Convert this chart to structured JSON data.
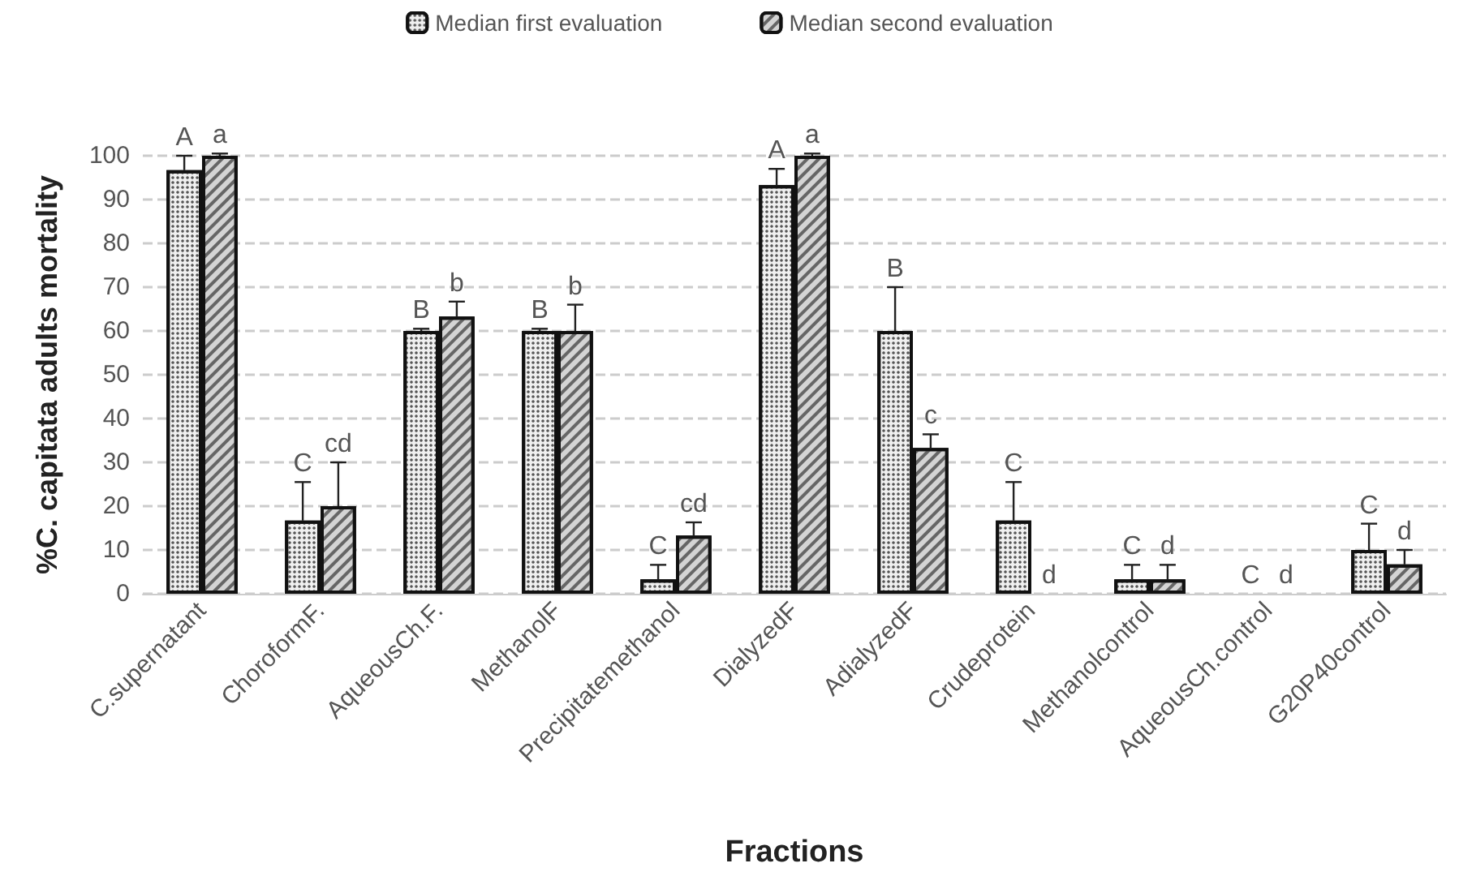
{
  "chart_data": {
    "type": "bar",
    "xlabel": "Fractions",
    "ylabel": "%C. capitata adults mortality",
    "categories": [
      "C.supernatant",
      "ChoroformF.",
      "AqueousCh.F.",
      "MethanolF",
      "Precipitatemethanol",
      "DialyzedF",
      "AdialyzedF",
      "Crudeprotein",
      "Methanolcontrol",
      "AqueousCh.control",
      "G20P40control"
    ],
    "series": [
      {
        "name": "Median first evaluation",
        "color": "#f0f0f0",
        "values": [
          96.7,
          16.7,
          60,
          60,
          3.3,
          93.3,
          60,
          16.7,
          3.3,
          0,
          10
        ],
        "errors": [
          [
            96.7,
            100
          ],
          [
            16.7,
            25.5
          ],
          [
            60,
            60.5
          ],
          [
            60,
            60.5
          ],
          [
            3.3,
            6.6
          ],
          [
            93.3,
            97
          ],
          [
            60,
            70
          ],
          [
            16.7,
            25.5
          ],
          [
            3.3,
            6.6
          ],
          null,
          [
            10,
            16
          ]
        ],
        "value_labels": [
          "A",
          "C",
          "B",
          "B",
          "C",
          "A",
          "B",
          "C",
          "C",
          "C",
          "C"
        ]
      },
      {
        "name": "Median second evaluation",
        "color": "#d4d4d4",
        "values": [
          100,
          20,
          63.3,
          60,
          13.3,
          100,
          33.3,
          0,
          3.3,
          0,
          6.7
        ],
        "errors": [
          [
            100,
            100.5
          ],
          [
            20,
            30
          ],
          [
            63.3,
            66.7
          ],
          [
            60,
            66
          ],
          [
            13.3,
            16.3
          ],
          [
            100,
            100.5
          ],
          [
            33.3,
            36.4
          ],
          null,
          [
            3.3,
            6.6
          ],
          null,
          [
            6.7,
            10
          ]
        ],
        "value_labels": [
          "a",
          "cd",
          "b",
          "b",
          "cd",
          "a",
          "c",
          "d",
          "d",
          "d",
          "d"
        ]
      }
    ],
    "ylim": [
      0,
      100
    ],
    "yticks": [
      0,
      10,
      20,
      30,
      40,
      50,
      60,
      70,
      80,
      90,
      100
    ],
    "grid": "y",
    "legend": "top"
  }
}
